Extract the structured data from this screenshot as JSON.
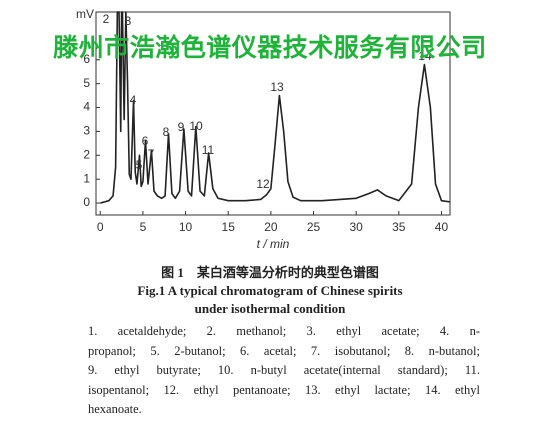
{
  "watermark": "滕州市浩瀚色谱仪器技术服务有限公司",
  "chart_data": {
    "type": "line",
    "y_label": "mV",
    "x_label": "t / min",
    "xlim": [
      -0.5,
      41
    ],
    "ylim": [
      -0.5,
      8.0
    ],
    "xticks": [
      0,
      5,
      10,
      15,
      20,
      25,
      30,
      35,
      40
    ],
    "yticks": [
      0,
      1,
      2,
      3,
      4,
      5,
      6
    ],
    "color": "#222222",
    "x": [
      0,
      0.5,
      1.0,
      1.5,
      1.8,
      2.0,
      2.2,
      2.4,
      2.5,
      2.6,
      2.8,
      3.0,
      3.2,
      3.4,
      3.6,
      3.9,
      4.1,
      4.3,
      4.6,
      4.8,
      5.0,
      5.3,
      5.6,
      6.0,
      6.3,
      6.7,
      7.2,
      7.6,
      8.0,
      8.4,
      8.8,
      9.3,
      9.8,
      10.3,
      10.7,
      11.2,
      11.7,
      12.2,
      12.7,
      13.2,
      13.8,
      15,
      17,
      18.8,
      19.5,
      20.0,
      20.5,
      21.0,
      21.5,
      22.0,
      22.6,
      23.5,
      26,
      30,
      31.5,
      32.5,
      33.5,
      35,
      36.5,
      37.3,
      38.0,
      38.7,
      39.3,
      40,
      41
    ],
    "values": [
      0,
      0.05,
      0.1,
      0.3,
      1.5,
      8.0,
      8.0,
      3.0,
      8.0,
      8.0,
      3.5,
      8.0,
      5.0,
      1.2,
      1.0,
      4.3,
      1.3,
      0.8,
      2.0,
      0.7,
      0.9,
      2.6,
      0.8,
      2.2,
      0.5,
      0.3,
      0.2,
      0.3,
      2.9,
      0.4,
      0.2,
      0.5,
      3.1,
      0.5,
      0.3,
      3.2,
      0.5,
      0.3,
      2.1,
      0.6,
      0.2,
      0.1,
      0.1,
      0.15,
      0.35,
      0.6,
      2.5,
      4.5,
      3.0,
      0.9,
      0.25,
      0.1,
      0.1,
      0.2,
      0.4,
      0.55,
      0.3,
      0.1,
      0.8,
      4.0,
      5.8,
      4.0,
      0.8,
      0.1,
      0.05
    ],
    "peak_labels": [
      "2",
      "3",
      "4",
      "5",
      "6",
      "7",
      "8",
      "9",
      "10",
      "11",
      "12",
      "13",
      "14"
    ]
  },
  "caption": {
    "cn": "图 1　某白酒等温分析时的典型色谱图",
    "en_line1": "Fig.1  A typical chromatogram of Chinese spirits",
    "en_line2": "under isothermal condition"
  },
  "legend_lines": [
    "1. acetaldehyde; 2. methanol; 3. ethyl acetate; 4. n-",
    "propanol; 5. 2-butanol; 6. acetal; 7. isobutanol; 8. n-butanol;",
    "9. ethyl butyrate; 10. n-butyl acetate(internal standard); 11.",
    "isopentanol; 12. ethyl pentanoate; 13. ethyl lactate; 14. ethyl",
    "hexanoate."
  ]
}
